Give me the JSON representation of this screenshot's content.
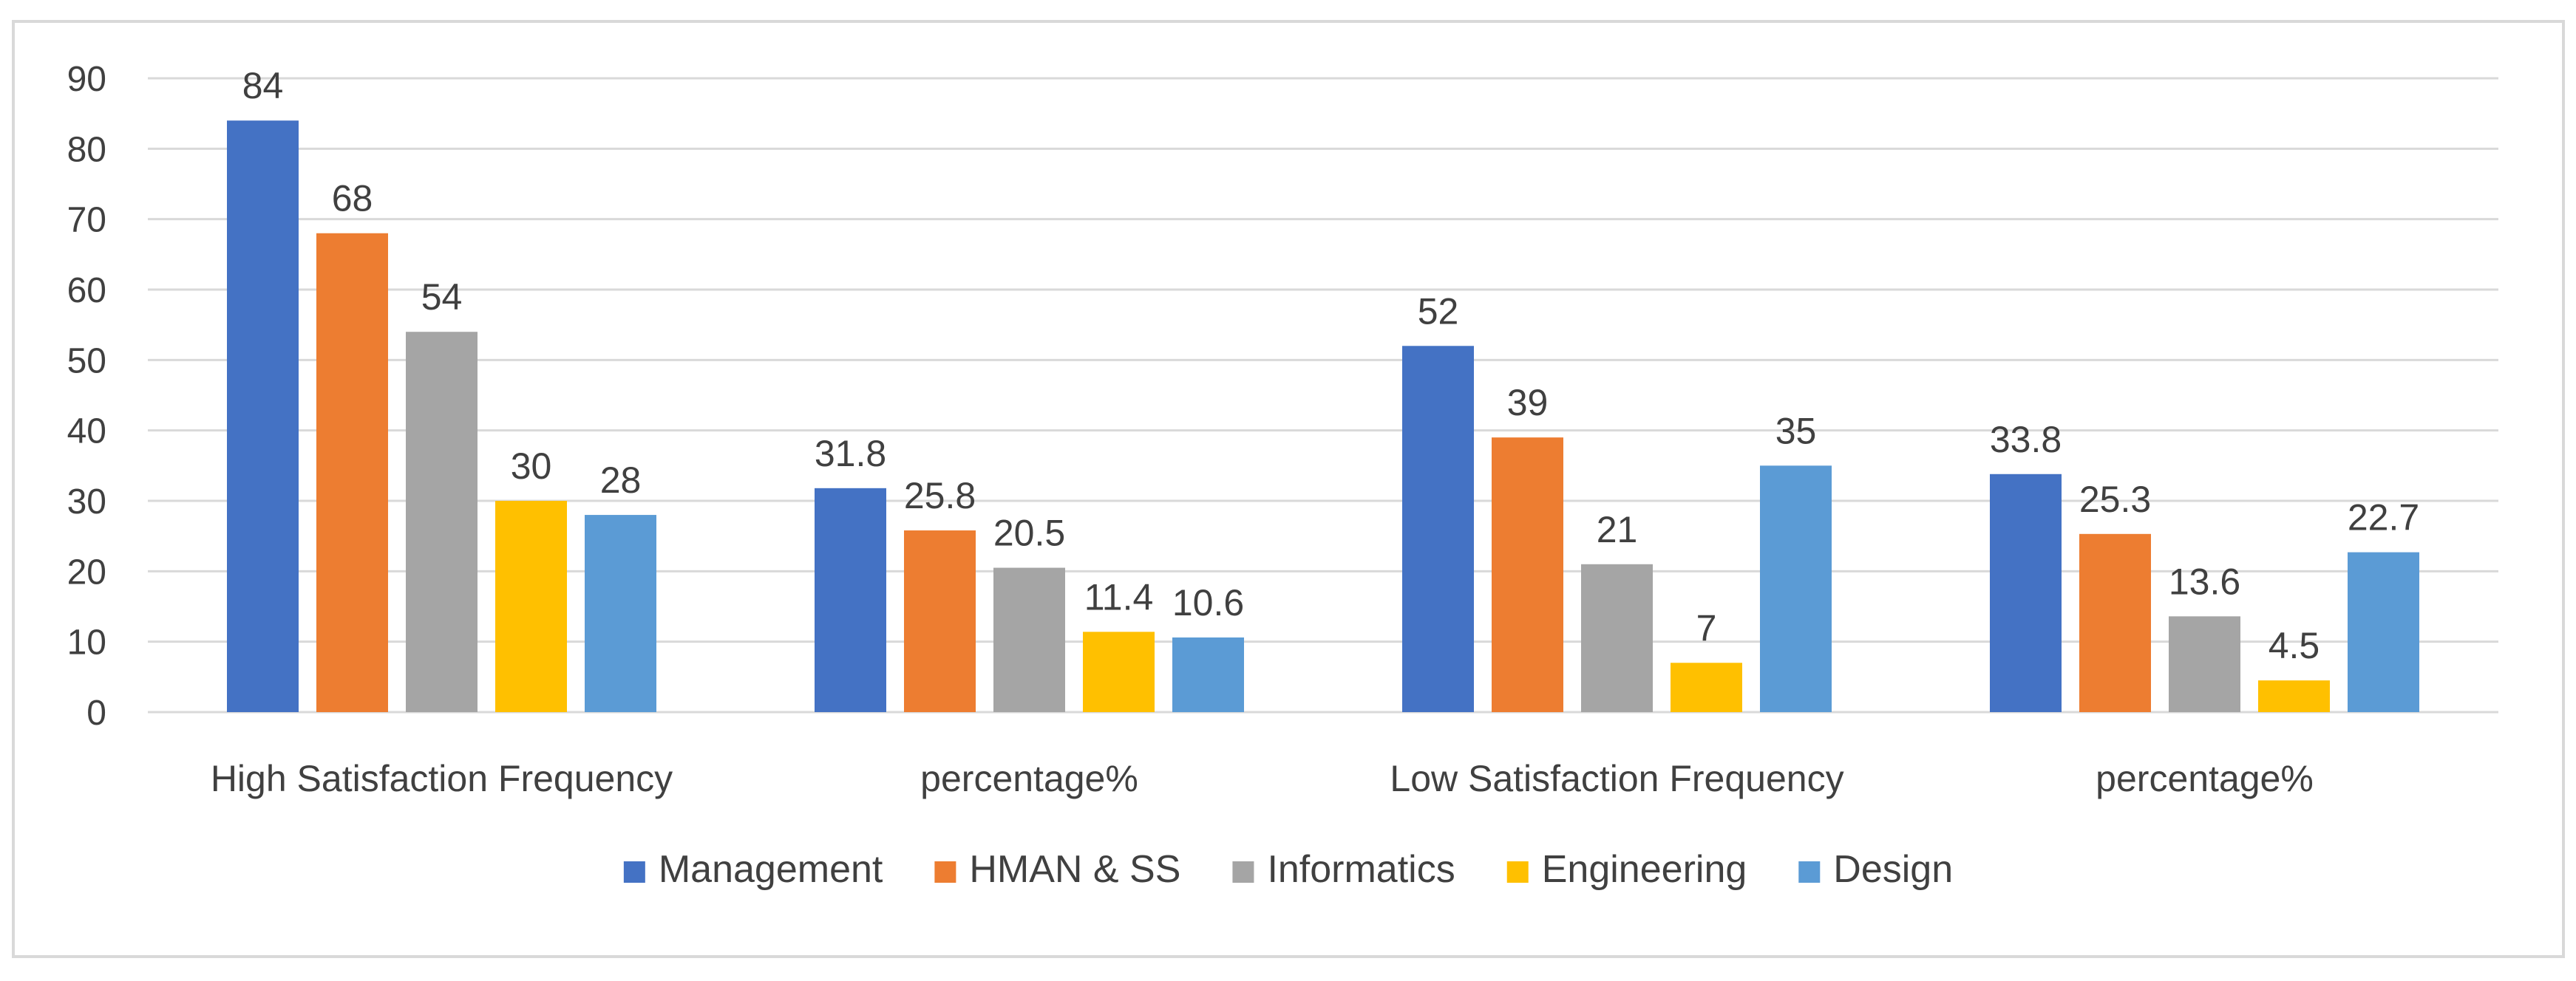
{
  "chart_data": {
    "type": "bar",
    "title": "",
    "xlabel": "",
    "ylabel": "",
    "ylim": [
      0,
      90
    ],
    "yticks": [
      0,
      10,
      20,
      30,
      40,
      50,
      60,
      70,
      80,
      90
    ],
    "grid": true,
    "legend_position": "bottom",
    "categories": [
      "High Satisfaction Frequency",
      "percentage%",
      "Low Satisfaction Frequency",
      "percentage%"
    ],
    "series": [
      {
        "name": "Management",
        "color": "#4472C4",
        "values": [
          84,
          31.8,
          52,
          33.8
        ]
      },
      {
        "name": "HMAN & SS",
        "color": "#ED7D31",
        "values": [
          68,
          25.8,
          39,
          25.3
        ]
      },
      {
        "name": "Informatics",
        "color": "#A5A5A5",
        "values": [
          54,
          20.5,
          21,
          13.6
        ]
      },
      {
        "name": "Engineering",
        "color": "#FFC000",
        "values": [
          30,
          11.4,
          7,
          4.5
        ]
      },
      {
        "name": "Design",
        "color": "#5B9BD5",
        "values": [
          28,
          10.6,
          35,
          22.7
        ]
      }
    ]
  }
}
